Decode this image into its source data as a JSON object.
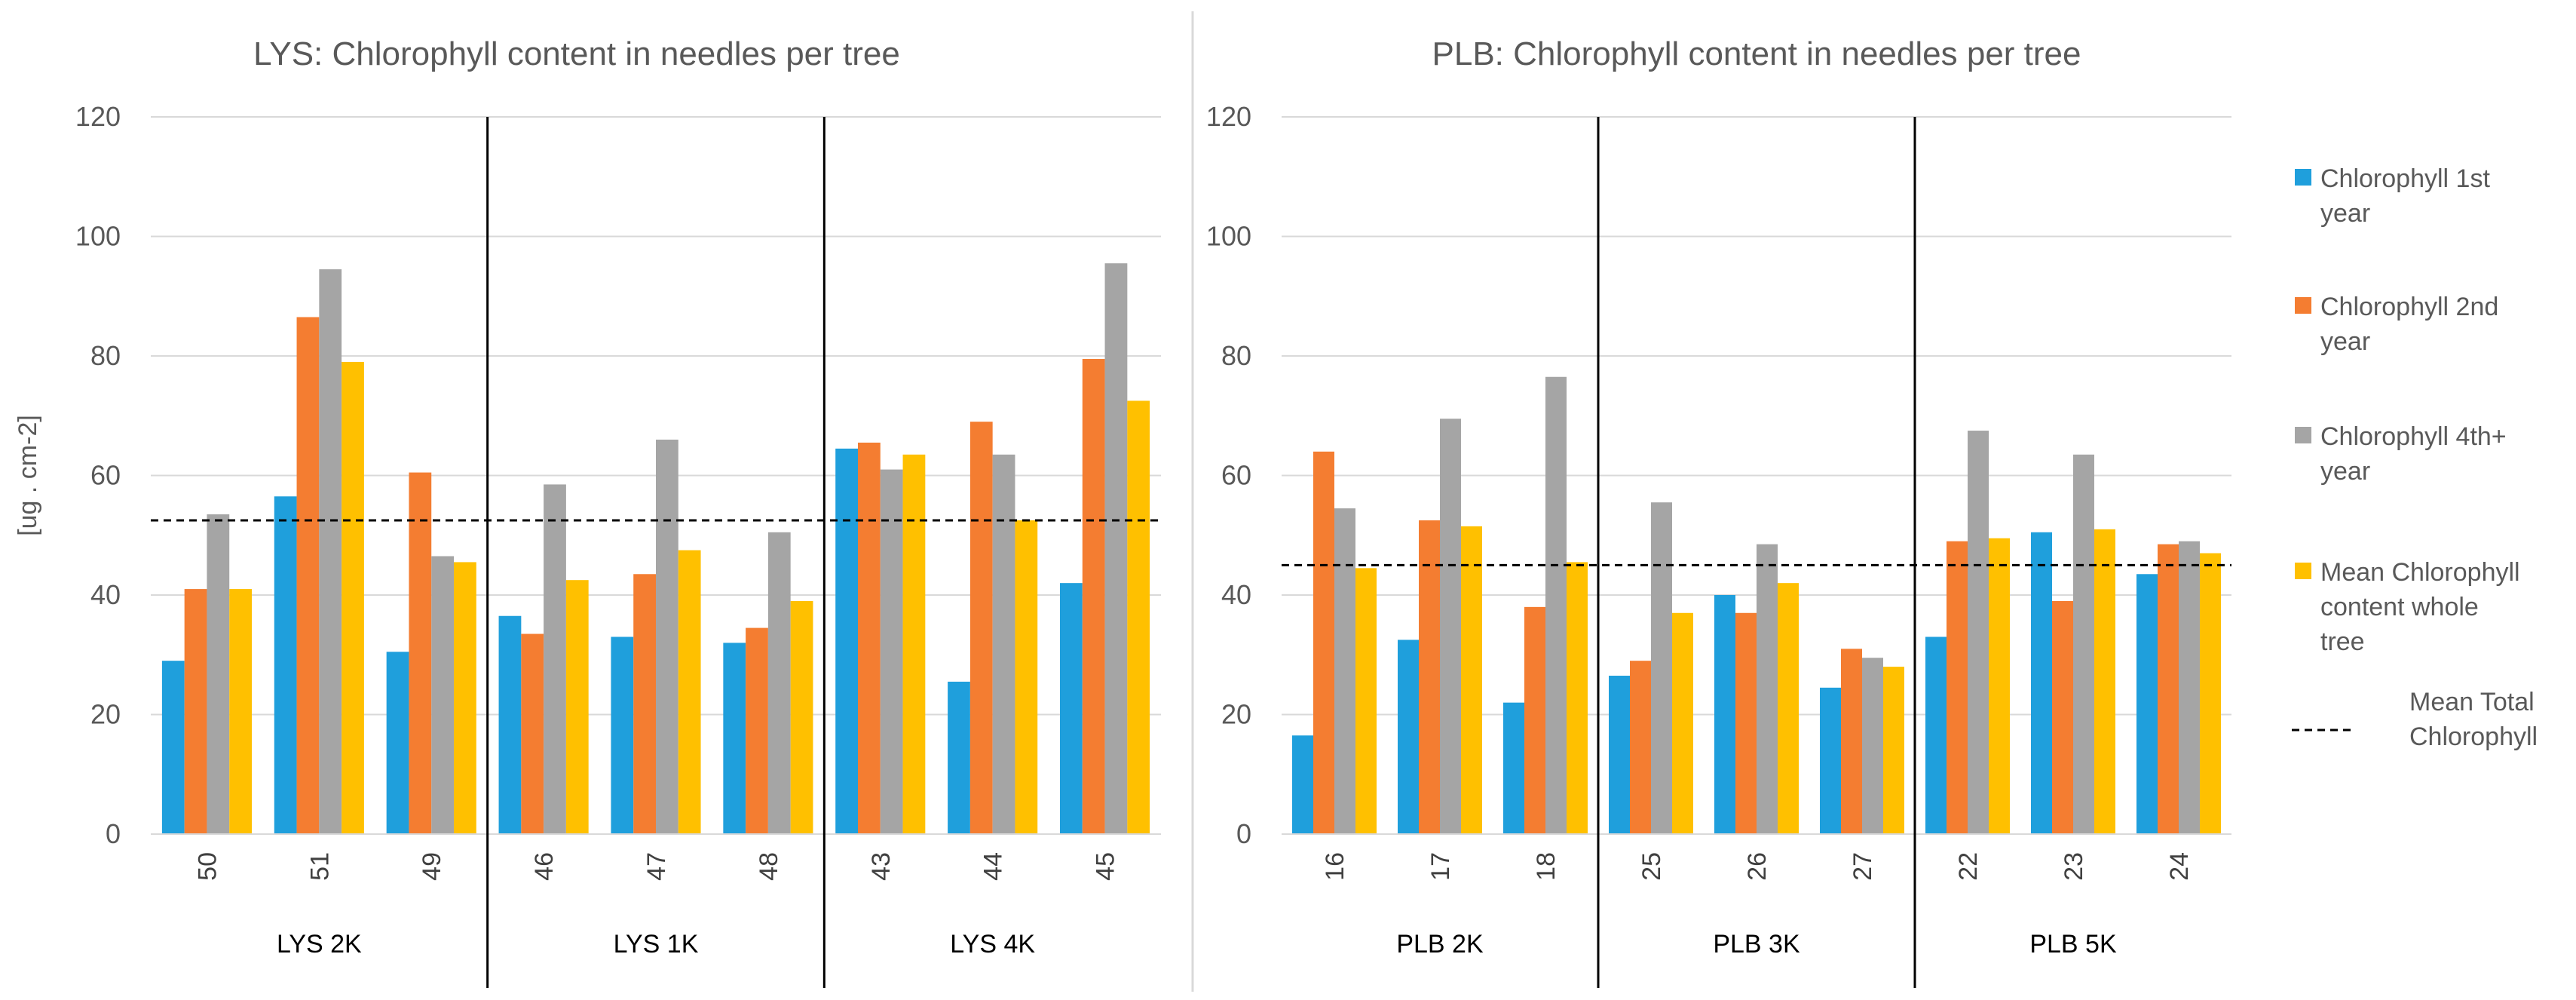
{
  "chart_data": [
    {
      "type": "bar",
      "title": "LYS: Chlorophyll content in needles per tree",
      "ylabel": "[ug . cm-2]",
      "ylim": [
        0,
        120
      ],
      "yticks": [
        "0",
        "20",
        "40",
        "60",
        "80",
        "100",
        "120"
      ],
      "categories": [
        "50",
        "51",
        "49",
        "46",
        "47",
        "48",
        "43",
        "44",
        "45"
      ],
      "groups": [
        "LYS 2K",
        "LYS 1K",
        "LYS 4K"
      ],
      "series": [
        {
          "name": "Chlorophyll 1st year",
          "color": "#1f9fdc",
          "values": [
            29,
            56.5,
            30.5,
            36.5,
            33,
            32,
            64.5,
            25.5,
            42
          ]
        },
        {
          "name": "Chlorophyll 2nd year",
          "color": "#f47d31",
          "values": [
            41,
            86.5,
            60.5,
            33.5,
            43.5,
            34.5,
            65.5,
            69,
            79.5
          ]
        },
        {
          "name": "Chlorophyll 4th+ year",
          "color": "#a5a5a5",
          "values": [
            53.5,
            94.5,
            46.5,
            58.5,
            66,
            50.5,
            61,
            63.5,
            95.5
          ]
        },
        {
          "name": "Mean Chlorophyll content whole tree",
          "color": "#ffc000",
          "values": [
            41,
            79,
            45.5,
            42.5,
            47.5,
            39,
            63.5,
            52.5,
            72.5
          ]
        }
      ],
      "mean_total": 52.5
    },
    {
      "type": "bar",
      "title": "PLB: Chlorophyll content in needles per tree",
      "ylabel": "",
      "ylim": [
        0,
        120
      ],
      "yticks": [
        "0",
        "20",
        "40",
        "60",
        "80",
        "100",
        "120"
      ],
      "categories": [
        "16",
        "17",
        "18",
        "25",
        "26",
        "27",
        "22",
        "23",
        "24"
      ],
      "groups": [
        "PLB 2K",
        "PLB 3K",
        "PLB 5K"
      ],
      "series": [
        {
          "name": "Chlorophyll 1st year",
          "color": "#1f9fdc",
          "values": [
            16.5,
            32.5,
            22,
            26.5,
            40,
            24.5,
            33,
            50.5,
            43.5
          ]
        },
        {
          "name": "Chlorophyll 2nd year",
          "color": "#f47d31",
          "values": [
            64,
            52.5,
            38,
            29,
            37,
            31,
            49,
            39,
            48.5
          ]
        },
        {
          "name": "Chlorophyll 4th+ year",
          "color": "#a5a5a5",
          "values": [
            54.5,
            69.5,
            76.5,
            55.5,
            48.5,
            29.5,
            67.5,
            63.5,
            49
          ]
        },
        {
          "name": "Mean Chlorophyll content whole tree",
          "color": "#ffc000",
          "values": [
            44.5,
            51.5,
            45.5,
            37,
            42,
            28,
            49.5,
            51,
            47
          ]
        }
      ],
      "mean_total": 45
    }
  ],
  "legend": {
    "items": [
      {
        "lines": [
          "Chlorophyll 1st",
          "year"
        ],
        "color": "#1f9fdc",
        "kind": "box"
      },
      {
        "lines": [
          "Chlorophyll 2nd",
          "year"
        ],
        "color": "#f47d31",
        "kind": "box"
      },
      {
        "lines": [
          "Chlorophyll 4th+",
          "year"
        ],
        "color": "#a5a5a5",
        "kind": "box"
      },
      {
        "lines": [
          "Mean Chlorophyll",
          "content whole",
          "tree"
        ],
        "color": "#ffc000",
        "kind": "box"
      },
      {
        "lines": [
          "Mean Total",
          "Chlorophyll"
        ],
        "color": "#000000",
        "kind": "dash"
      }
    ]
  }
}
